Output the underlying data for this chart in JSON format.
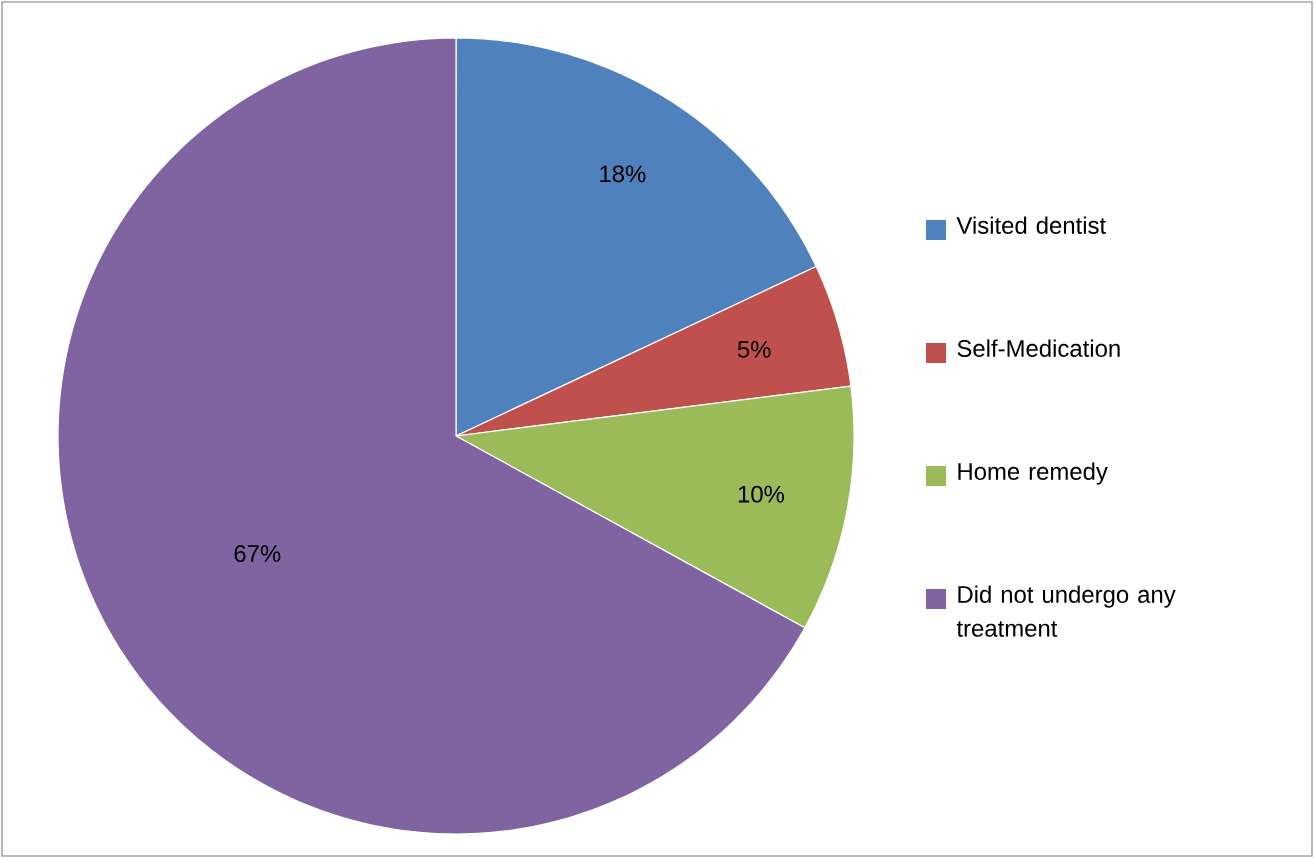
{
  "chart_data": {
    "type": "pie",
    "categories": [
      "Visited dentist",
      "Self-Medication",
      "Home remedy",
      "Did not undergo any treatment"
    ],
    "values": [
      18,
      5,
      10,
      67
    ],
    "colors": [
      "#4f81bd",
      "#c0504d",
      "#9bbb59",
      "#8064a2"
    ],
    "value_labels": [
      "18%",
      "5%",
      "10%",
      "67%"
    ],
    "legend": "right"
  }
}
